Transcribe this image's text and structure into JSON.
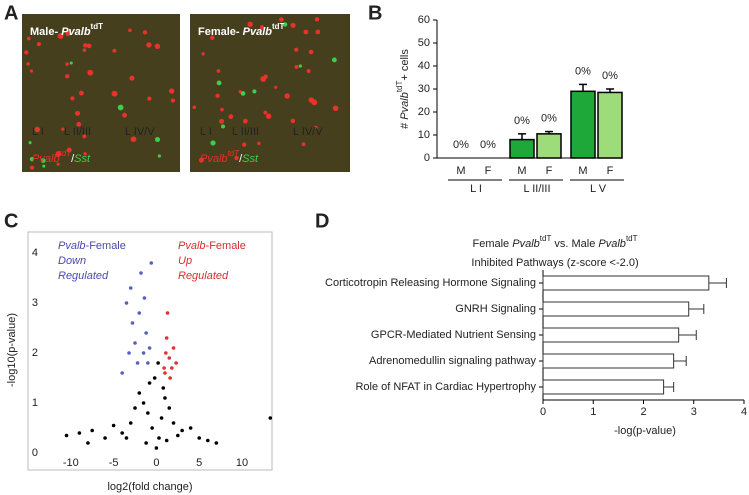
{
  "panel_labels": [
    "A",
    "B",
    "C",
    "D"
  ],
  "images": [
    {
      "title": [
        "Male- ",
        "Pvalb",
        "tdT"
      ],
      "layers": [
        "L I",
        "L II/III",
        "L IV/V"
      ],
      "stain": [
        "Pvalb",
        "tdT",
        "/",
        "Sst"
      ]
    },
    {
      "title": [
        "Female- ",
        "Pvalb",
        "tdT"
      ],
      "layers": [
        "L I",
        "L II/III",
        "L IV/V"
      ],
      "stain": [
        "Pvalb",
        "tdT",
        "/",
        "Sst"
      ]
    }
  ],
  "chart_data": [
    {
      "type": "bar",
      "ylabel": [
        "# ",
        "Pvalb",
        "tdT",
        "+ cells"
      ],
      "categories": [
        "M",
        "F",
        "M",
        "F",
        "M",
        "F"
      ],
      "groups": [
        "L I",
        "L II/III",
        "L V"
      ],
      "values": [
        0,
        0,
        8,
        10.5,
        29,
        28.5
      ],
      "errors": [
        0,
        0,
        2.5,
        1,
        3,
        1.5
      ],
      "annotations": [
        "0%",
        "0%",
        "0%",
        "0%",
        "0%",
        "0%"
      ],
      "colors": [
        "#1fa83a",
        "#9ddc78",
        "#1fa83a",
        "#9ddc78",
        "#1fa83a",
        "#9ddc78"
      ],
      "ylim": [
        0,
        60
      ],
      "yticks": [
        0,
        10,
        20,
        30,
        40,
        50,
        60
      ]
    },
    {
      "type": "scatter",
      "xlabel": "log2(fold change)",
      "ylabel": "-log10(p-value)",
      "xlim": [
        -15,
        13.5
      ],
      "ylim": [
        -0.34,
        4.42
      ],
      "xticks": [
        -10,
        -5,
        0,
        5,
        10
      ],
      "yticks": [
        0,
        1,
        2,
        3,
        4
      ],
      "annotations": [
        {
          "lines": [
            [
              "Pvalb",
              "-Female"
            ],
            [
              "Down"
            ],
            [
              "Regulated"
            ]
          ],
          "color": "#4a4ab0"
        },
        {
          "lines": [
            [
              "Pvalb",
              "-Female"
            ],
            [
              "Up"
            ],
            [
              "Regulated"
            ]
          ],
          "color": "#d03030"
        }
      ],
      "series": [
        {
          "color": "#000000",
          "x": [
            -10.5,
            -9,
            -7.5,
            -6,
            -5,
            -4,
            -3,
            -2.5,
            -2,
            -1.5,
            -1,
            -0.5,
            0,
            0.3,
            0.6,
            1,
            1.5,
            2,
            3,
            4,
            5,
            6,
            7,
            -8,
            -0.2,
            0.2,
            -0.8,
            0.8,
            13.3,
            -1.2,
            1.2,
            -3.5,
            2.5
          ],
          "values": [
            0.35,
            0.4,
            0.45,
            0.3,
            0.55,
            0.4,
            0.6,
            0.9,
            1.2,
            1.0,
            0.8,
            0.5,
            0.1,
            0.3,
            0.7,
            1.1,
            0.9,
            0.6,
            0.45,
            0.5,
            0.3,
            0.25,
            0.2,
            0.2,
            1.5,
            1.8,
            1.4,
            1.3,
            0.7,
            0.2,
            0.25,
            0.3,
            0.35
          ]
        },
        {
          "color": "#5560c0",
          "x": [
            -3.5,
            -3,
            -2.8,
            -2.5,
            -2,
            -1.8,
            -1.5,
            -1.2,
            -1,
            -0.8,
            -2.2,
            -4,
            -3.2,
            -0.6,
            -1.4
          ],
          "values": [
            3.0,
            3.3,
            2.6,
            2.2,
            2.8,
            3.6,
            2.0,
            2.4,
            1.8,
            2.1,
            1.8,
            1.6,
            2.0,
            3.8,
            3.1
          ]
        },
        {
          "color": "#e03030",
          "x": [
            1,
            1.2,
            1.5,
            1.8,
            2,
            1.3,
            1.6,
            2.3,
            1.1,
            0.9
          ],
          "values": [
            1.6,
            2.3,
            1.9,
            1.7,
            2.1,
            2.8,
            1.5,
            1.8,
            2.0,
            1.7
          ]
        }
      ]
    },
    {
      "type": "hbar",
      "title": [
        [
          "Female ",
          "Pvalb",
          "tdT",
          " vs. Male ",
          "Pvalb",
          "tdT"
        ],
        [
          "Inhibited Pathways (z-score <-2.0)"
        ]
      ],
      "xlabel": "-log(p-value)",
      "categories": [
        "Corticotropin Releasing Hormone Signaling",
        "GNRH Signaling",
        "GPCR-Mediated Nutrient Sensing",
        "Adrenomedullin signaling pathway",
        "Role of NFAT in Cardiac Hypertrophy"
      ],
      "values": [
        3.3,
        2.9,
        2.7,
        2.6,
        2.4
      ],
      "errors": [
        0.35,
        0.3,
        0.35,
        0.25,
        0.2
      ],
      "color": "#ffffff",
      "xlim": [
        0,
        4
      ],
      "xticks": [
        0,
        1,
        2,
        3,
        4
      ]
    }
  ]
}
